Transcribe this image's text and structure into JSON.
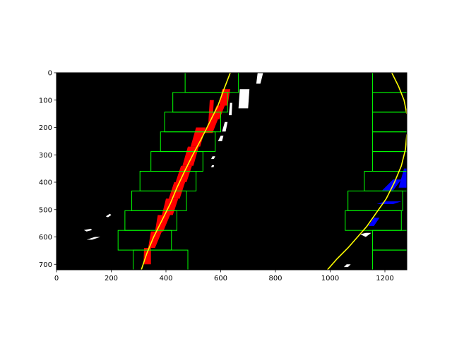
{
  "colors": {
    "background": "#000000",
    "left_pixels": "#ff0000",
    "right_pixels": "#0000ff",
    "other_pixels": "#ffffff",
    "windows": "#00ff00",
    "fit_line": "#ffff00",
    "axes": "#000000"
  },
  "chart_data": {
    "type": "image",
    "title": "",
    "xlabel": "",
    "ylabel": "",
    "xlim": [
      0,
      1280
    ],
    "ylim": [
      720,
      0
    ],
    "grid": false,
    "xticks": [
      0,
      200,
      400,
      600,
      800,
      1000,
      1200
    ],
    "yticks": [
      0,
      100,
      200,
      300,
      400,
      500,
      600,
      700
    ],
    "xtick_labels": [
      "0",
      "200",
      "400",
      "600",
      "800",
      "1000",
      "1200"
    ],
    "ytick_labels": [
      "0",
      "100",
      "200",
      "300",
      "400",
      "500",
      "600",
      "700"
    ],
    "left_lane": {
      "fit_curve": [
        [
          310,
          720
        ],
        [
          330,
          660
        ],
        [
          355,
          600
        ],
        [
          385,
          540
        ],
        [
          415,
          480
        ],
        [
          440,
          420
        ],
        [
          468,
          360
        ],
        [
          498,
          300
        ],
        [
          530,
          240
        ],
        [
          560,
          180
        ],
        [
          590,
          120
        ],
        [
          612,
          60
        ],
        [
          635,
          0
        ]
      ],
      "windows": [
        {
          "x": [
            280,
            480
          ],
          "y": [
            648,
            720
          ]
        },
        {
          "x": [
            225,
            420
          ],
          "y": [
            576,
            648
          ]
        },
        {
          "x": [
            250,
            440
          ],
          "y": [
            504,
            576
          ]
        },
        {
          "x": [
            275,
            475
          ],
          "y": [
            432,
            504
          ]
        },
        {
          "x": [
            305,
            510
          ],
          "y": [
            360,
            432
          ]
        },
        {
          "x": [
            345,
            535
          ],
          "y": [
            288,
            360
          ]
        },
        {
          "x": [
            380,
            580
          ],
          "y": [
            216,
            288
          ]
        },
        {
          "x": [
            395,
            600
          ],
          "y": [
            144,
            216
          ]
        },
        {
          "x": [
            425,
            625
          ],
          "y": [
            72,
            144
          ]
        },
        {
          "x": [
            470,
            665
          ],
          "y": [
            0,
            72
          ]
        }
      ]
    },
    "right_lane": {
      "fit_curve": [
        [
          990,
          720
        ],
        [
          1025,
          680
        ],
        [
          1065,
          640
        ],
        [
          1100,
          600
        ],
        [
          1135,
          560
        ],
        [
          1170,
          510
        ],
        [
          1205,
          460
        ],
        [
          1235,
          400
        ],
        [
          1260,
          340
        ],
        [
          1275,
          280
        ],
        [
          1280,
          225
        ]
      ],
      "fit_curve_top": [
        [
          1280,
          150
        ],
        [
          1270,
          100
        ],
        [
          1250,
          50
        ],
        [
          1225,
          0
        ]
      ],
      "windows": [
        {
          "x": [
            1155,
            1280
          ],
          "y": [
            648,
            720
          ]
        },
        {
          "x": [
            1155,
            1280
          ],
          "y": [
            576,
            648
          ]
        },
        {
          "x": [
            1055,
            1260
          ],
          "y": [
            504,
            576
          ]
        },
        {
          "x": [
            1065,
            1265
          ],
          "y": [
            432,
            504
          ]
        },
        {
          "x": [
            1125,
            1280
          ],
          "y": [
            360,
            432
          ]
        },
        {
          "x": [
            1155,
            1280
          ],
          "y": [
            288,
            360
          ]
        },
        {
          "x": [
            1155,
            1280
          ],
          "y": [
            216,
            288
          ]
        },
        {
          "x": [
            1155,
            1280
          ],
          "y": [
            144,
            216
          ]
        },
        {
          "x": [
            1155,
            1280
          ],
          "y": [
            72,
            144
          ]
        },
        {
          "x": [
            1155,
            1280
          ],
          "y": [
            0,
            72
          ]
        }
      ]
    },
    "left_pixels": [
      [
        [
          318,
          700
        ],
        [
          320,
          640
        ],
        [
          345,
          640
        ],
        [
          345,
          700
        ]
      ],
      [
        [
          335,
          640
        ],
        [
          345,
          580
        ],
        [
          385,
          580
        ],
        [
          360,
          640
        ]
      ],
      [
        [
          360,
          580
        ],
        [
          370,
          520
        ],
        [
          415,
          520
        ],
        [
          390,
          580
        ]
      ],
      [
        [
          385,
          520
        ],
        [
          400,
          460
        ],
        [
          445,
          460
        ],
        [
          425,
          520
        ]
      ],
      [
        [
          410,
          460
        ],
        [
          430,
          400
        ],
        [
          470,
          400
        ],
        [
          450,
          460
        ]
      ],
      [
        [
          435,
          400
        ],
        [
          455,
          340
        ],
        [
          495,
          340
        ],
        [
          475,
          400
        ]
      ],
      [
        [
          460,
          340
        ],
        [
          480,
          270
        ],
        [
          520,
          270
        ],
        [
          500,
          340
        ]
      ],
      [
        [
          490,
          270
        ],
        [
          510,
          200
        ],
        [
          545,
          200
        ],
        [
          525,
          270
        ]
      ],
      [
        [
          540,
          220
        ],
        [
          560,
          170
        ],
        [
          590,
          170
        ],
        [
          570,
          220
        ]
      ],
      [
        [
          565,
          170
        ],
        [
          585,
          120
        ],
        [
          615,
          120
        ],
        [
          595,
          170
        ]
      ],
      [
        [
          595,
          120
        ],
        [
          605,
          60
        ],
        [
          635,
          60
        ],
        [
          625,
          120
        ]
      ],
      [
        [
          555,
          180
        ],
        [
          560,
          100
        ],
        [
          575,
          100
        ],
        [
          570,
          180
        ]
      ]
    ],
    "right_pixels": [
      [
        [
          1140,
          560
        ],
        [
          1160,
          530
        ],
        [
          1180,
          530
        ],
        [
          1160,
          560
        ]
      ],
      [
        [
          1170,
          480
        ],
        [
          1200,
          470
        ],
        [
          1260,
          470
        ],
        [
          1230,
          480
        ]
      ],
      [
        [
          1190,
          430
        ],
        [
          1230,
          390
        ],
        [
          1260,
          390
        ],
        [
          1230,
          430
        ]
      ],
      [
        [
          1250,
          420
        ],
        [
          1270,
          350
        ],
        [
          1280,
          350
        ],
        [
          1280,
          420
        ]
      ]
    ],
    "other_pixels": [
      [
        [
          730,
          40
        ],
        [
          735,
          0
        ],
        [
          755,
          0
        ],
        [
          745,
          40
        ]
      ],
      [
        [
          665,
          130
        ],
        [
          670,
          60
        ],
        [
          705,
          60
        ],
        [
          700,
          130
        ]
      ],
      [
        [
          630,
          155
        ],
        [
          634,
          110
        ],
        [
          642,
          110
        ],
        [
          640,
          155
        ]
      ],
      [
        [
          590,
          250
        ],
        [
          600,
          230
        ],
        [
          610,
          230
        ],
        [
          605,
          250
        ]
      ],
      [
        [
          605,
          215
        ],
        [
          615,
          180
        ],
        [
          625,
          180
        ],
        [
          618,
          215
        ]
      ],
      [
        [
          565,
          315
        ],
        [
          570,
          305
        ],
        [
          580,
          305
        ],
        [
          575,
          315
        ]
      ],
      [
        [
          565,
          345
        ],
        [
          568,
          338
        ],
        [
          576,
          338
        ],
        [
          574,
          345
        ]
      ],
      [
        [
          110,
          610
        ],
        [
          140,
          600
        ],
        [
          160,
          600
        ],
        [
          130,
          610
        ]
      ],
      [
        [
          100,
          575
        ],
        [
          125,
          570
        ],
        [
          130,
          575
        ],
        [
          110,
          580
        ]
      ],
      [
        [
          180,
          525
        ],
        [
          195,
          515
        ],
        [
          200,
          520
        ],
        [
          188,
          528
        ]
      ],
      [
        [
          1110,
          590
        ],
        [
          1130,
          585
        ],
        [
          1150,
          585
        ],
        [
          1130,
          600
        ]
      ],
      [
        [
          1050,
          710
        ],
        [
          1060,
          700
        ],
        [
          1075,
          700
        ],
        [
          1065,
          710
        ]
      ]
    ]
  }
}
